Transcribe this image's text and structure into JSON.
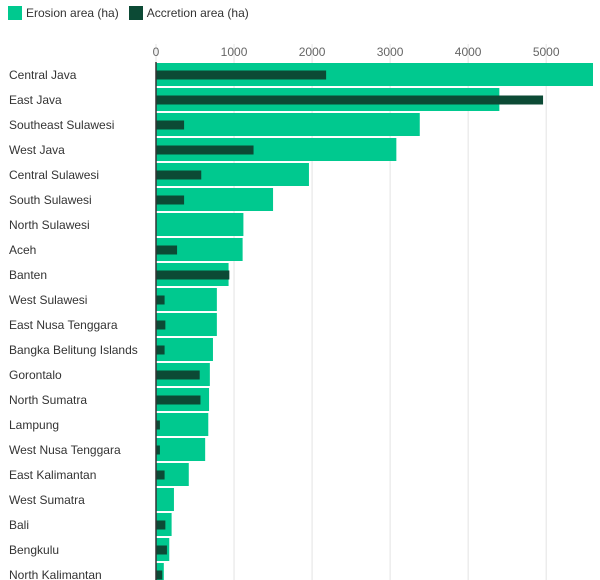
{
  "legend": {
    "erosion_label": "Erosion area (ha)",
    "accretion_label": "Accretion area (ha)"
  },
  "colors": {
    "erosion": "#00c98f",
    "accretion": "#0c4a35",
    "grid": "#e3e3e3",
    "axis": "#333333"
  },
  "chart_data": {
    "type": "bar",
    "orientation": "horizontal",
    "grid": true,
    "legend_position": "top-left",
    "x_ticks": [
      0,
      1000,
      2000,
      3000,
      4000,
      5000
    ],
    "xlim": [
      0,
      5600
    ],
    "categories": [
      "Central Java",
      "East Java",
      "Southeast Sulawesi",
      "West Java",
      "Central Sulawesi",
      "South Sulawesi",
      "North Sulawesi",
      "Aceh",
      "Banten",
      "West Sulawesi",
      "East Nusa Tenggara",
      "Bangka Belitung Islands",
      "Gorontalo",
      "North Sumatra",
      "Lampung",
      "West Nusa Tenggara",
      "East Kalimantan",
      "West Sumatra",
      "Bali",
      "Bengkulu",
      "North Kalimantan"
    ],
    "series": [
      {
        "name": "Erosion area (ha)",
        "values": [
          5600,
          4400,
          3380,
          3080,
          1960,
          1500,
          1120,
          1110,
          930,
          780,
          780,
          730,
          690,
          680,
          670,
          630,
          420,
          230,
          200,
          170,
          100
        ]
      },
      {
        "name": "Accretion area (ha)",
        "values": [
          2180,
          4960,
          360,
          1250,
          580,
          360,
          0,
          270,
          940,
          110,
          120,
          110,
          560,
          570,
          50,
          50,
          110,
          0,
          120,
          140,
          80
        ]
      }
    ]
  }
}
